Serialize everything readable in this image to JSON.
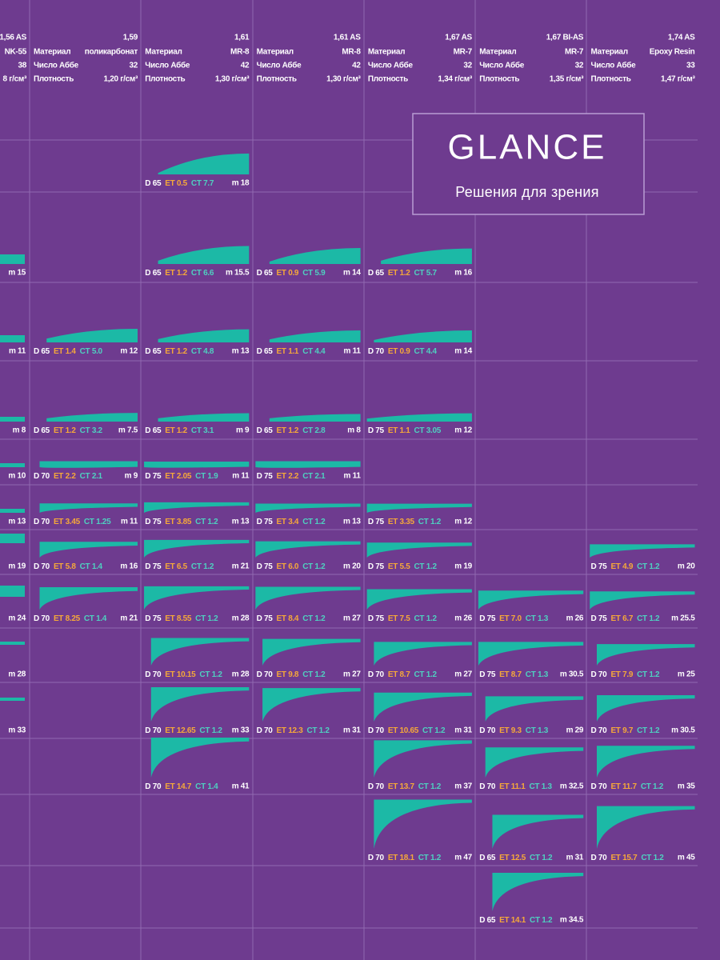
{
  "brand": {
    "name": "GLANCE",
    "tagline": "Решения для зрения"
  },
  "row_labels": {
    "material": "Материал",
    "abbe": "Число Аббе",
    "density": "Плотность"
  },
  "columns": [
    {
      "index": "1,56 AS",
      "material": "NK-55",
      "abbe": "38",
      "density": "8 г/см³",
      "cells": [
        null,
        {
          "m": "m 15"
        },
        {
          "m": "m 11"
        },
        {
          "m": "m 8"
        },
        {
          "m": "m 10"
        },
        {
          "m": "m 13"
        },
        {
          "m": "m 19"
        },
        {
          "m": "m 24"
        },
        {
          "m": "m 28"
        },
        {
          "m": "m 33"
        },
        null,
        null,
        null
      ]
    },
    {
      "index": "1,59",
      "material": "поликарбонат",
      "abbe": "32",
      "density": "1,20 г/см³",
      "cells": [
        null,
        null,
        {
          "d": "D 65",
          "et": "ET 1.4",
          "ct": "CT 5.0",
          "m": "m 12"
        },
        {
          "d": "D 65",
          "et": "ET 1.2",
          "ct": "CT 3.2",
          "m": "m 7.5"
        },
        {
          "d": "D 70",
          "et": "ET 2.2",
          "ct": "CT 2.1",
          "m": "m 9"
        },
        {
          "d": "D 70",
          "et": "ET 3.45",
          "ct": "CT 1.25",
          "m": "m 11"
        },
        {
          "d": "D 70",
          "et": "ET 5.8",
          "ct": "CT 1.4",
          "m": "m 16"
        },
        {
          "d": "D 70",
          "et": "ET 8.25",
          "ct": "CT 1.4",
          "m": "m 21"
        },
        null,
        null,
        null,
        null,
        null
      ]
    },
    {
      "index": "1,61",
      "material": "MR-8",
      "abbe": "42",
      "density": "1,30 г/см³",
      "cells": [
        {
          "d": "D 65",
          "et": "ET 0.5",
          "ct": "CT 7.7",
          "m": "m 18"
        },
        {
          "d": "D 65",
          "et": "ET 1.2",
          "ct": "CT 6.6",
          "m": "m 15.5"
        },
        {
          "d": "D 65",
          "et": "ET 1.2",
          "ct": "CT 4.8",
          "m": "m 13"
        },
        {
          "d": "D 65",
          "et": "ET 1.2",
          "ct": "CT 3.1",
          "m": "m 9"
        },
        {
          "d": "D 75",
          "et": "ET 2.05",
          "ct": "CT 1.9",
          "m": "m 11"
        },
        {
          "d": "D 75",
          "et": "ET 3.85",
          "ct": "CT 1.2",
          "m": "m 13"
        },
        {
          "d": "D 75",
          "et": "ET 6.5",
          "ct": "CT 1.2",
          "m": "m 21"
        },
        {
          "d": "D 75",
          "et": "ET 8.55",
          "ct": "CT 1.2",
          "m": "m 28"
        },
        {
          "d": "D 70",
          "et": "ET 10.15",
          "ct": "CT 1.2",
          "m": "m 28"
        },
        {
          "d": "D 70",
          "et": "ET 12.65",
          "ct": "CT 1.2",
          "m": "m 33"
        },
        {
          "d": "D 70",
          "et": "ET 14.7",
          "ct": "CT 1.4",
          "m": "m 41"
        },
        null,
        null
      ]
    },
    {
      "index": "1,61 AS",
      "material": "MR-8",
      "abbe": "42",
      "density": "1,30 г/см³",
      "cells": [
        null,
        {
          "d": "D 65",
          "et": "ET 0.9",
          "ct": "CT 5.9",
          "m": "m 14"
        },
        {
          "d": "D 65",
          "et": "ET 1.1",
          "ct": "CT 4.4",
          "m": "m 11"
        },
        {
          "d": "D 65",
          "et": "ET 1.2",
          "ct": "CT 2.8",
          "m": "m 8"
        },
        {
          "d": "D 75",
          "et": "ET 2.2",
          "ct": "CT 2.1",
          "m": "m 11"
        },
        {
          "d": "D 75",
          "et": "ET 3.4",
          "ct": "CT 1.2",
          "m": "m 13"
        },
        {
          "d": "D 75",
          "et": "ET 6.0",
          "ct": "CT 1.2",
          "m": "m 20"
        },
        {
          "d": "D 75",
          "et": "ET 8.4",
          "ct": "CT 1.2",
          "m": "m 27"
        },
        {
          "d": "D 70",
          "et": "ET 9.8",
          "ct": "CT 1.2",
          "m": "m 27"
        },
        {
          "d": "D 70",
          "et": "ET 12.3",
          "ct": "CT 1.2",
          "m": "m 31"
        },
        null,
        null,
        null
      ]
    },
    {
      "index": "1,67 AS",
      "material": "MR-7",
      "abbe": "32",
      "density": "1,34 г/см³",
      "cells": [
        null,
        {
          "d": "D 65",
          "et": "ET 1.2",
          "ct": "CT 5.7",
          "m": "m 16"
        },
        {
          "d": "D 70",
          "et": "ET 0.9",
          "ct": "CT 4.4",
          "m": "m 14"
        },
        {
          "d": "D 75",
          "et": "ET 1.1",
          "ct": "CT 3.05",
          "m": "m 12"
        },
        null,
        {
          "d": "D 75",
          "et": "ET 3.35",
          "ct": "CT 1.2",
          "m": "m 12"
        },
        {
          "d": "D 75",
          "et": "ET 5.5",
          "ct": "CT 1.2",
          "m": "m 19"
        },
        {
          "d": "D 75",
          "et": "ET 7.5",
          "ct": "CT 1.2",
          "m": "m 26"
        },
        {
          "d": "D 70",
          "et": "ET 8.7",
          "ct": "CT 1.2",
          "m": "m 27"
        },
        {
          "d": "D 70",
          "et": "ET 10.65",
          "ct": "CT 1.2",
          "m": "m 31"
        },
        {
          "d": "D 70",
          "et": "ET 13.7",
          "ct": "CT 1.2",
          "m": "m 37"
        },
        {
          "d": "D 70",
          "et": "ET 18.1",
          "ct": "CT 1.2",
          "m": "m 47"
        },
        null
      ]
    },
    {
      "index": "1,67 BI-AS",
      "material": "MR-7",
      "abbe": "32",
      "density": "1,35 г/см³",
      "cells": [
        null,
        null,
        null,
        null,
        null,
        null,
        null,
        {
          "d": "D 75",
          "et": "ET 7.0",
          "ct": "CT 1.3",
          "m": "m 26"
        },
        {
          "d": "D 75",
          "et": "ET 8.7",
          "ct": "CT 1.3",
          "m": "m 30.5"
        },
        {
          "d": "D 70",
          "et": "ET 9.3",
          "ct": "CT 1.3",
          "m": "m 29"
        },
        {
          "d": "D 70",
          "et": "ET 11.1",
          "ct": "CT 1.3",
          "m": "m 32.5"
        },
        {
          "d": "D 65",
          "et": "ET 12.5",
          "ct": "CT 1.2",
          "m": "m 31"
        },
        {
          "d": "D 65",
          "et": "ET 14.1",
          "ct": "CT 1.2",
          "m": "m 34.5"
        }
      ]
    },
    {
      "index": "1,74 AS",
      "material": "Epoxy Resin",
      "abbe": "33",
      "density": "1,47 г/см³",
      "cells": [
        null,
        null,
        null,
        null,
        null,
        null,
        {
          "d": "D 75",
          "et": "ET 4.9",
          "ct": "CT 1.2",
          "m": "m 20"
        },
        {
          "d": "D 75",
          "et": "ET 6.7",
          "ct": "CT 1.2",
          "m": "m 25.5"
        },
        {
          "d": "D 70",
          "et": "ET 7.9",
          "ct": "CT 1.2",
          "m": "m 25"
        },
        {
          "d": "D 70",
          "et": "ET 9.7",
          "ct": "CT 1.2",
          "m": "m 30.5"
        },
        {
          "d": "D 70",
          "et": "ET 11.7",
          "ct": "CT 1.2",
          "m": "m 35"
        },
        {
          "d": "D 70",
          "et": "ET 15.7",
          "ct": "CT 1.2",
          "m": "m 45"
        },
        null
      ]
    }
  ]
}
